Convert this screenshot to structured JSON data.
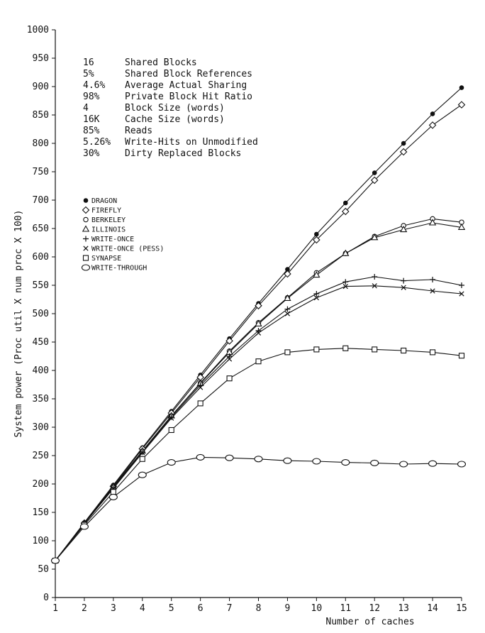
{
  "chart_data": {
    "type": "line",
    "title": "",
    "xlabel": "Number of caches",
    "ylabel": "System power (Proc util X num proc X 100)",
    "xlim": [
      1,
      15
    ],
    "ylim": [
      0,
      1000
    ],
    "xticks": [
      "1",
      "2",
      "3",
      "4",
      "5",
      "6",
      "7",
      "8",
      "9",
      "10",
      "11",
      "12",
      "13",
      "14",
      "15"
    ],
    "yticks": [
      "0",
      "50",
      "100",
      "150",
      "200",
      "250",
      "300",
      "350",
      "400",
      "450",
      "500",
      "550",
      "600",
      "650",
      "700",
      "750",
      "800",
      "850",
      "900",
      "950",
      "1000"
    ],
    "grid": false,
    "legend_position": "left",
    "parameters": [
      {
        "value": "16",
        "label": "Shared Blocks"
      },
      {
        "value": "5%",
        "label": "Shared Block References"
      },
      {
        "value": "4.6%",
        "label": "Average Actual Sharing"
      },
      {
        "value": "98%",
        "label": "Private Block Hit Ratio"
      },
      {
        "value": "4",
        "label": "Block Size (words)"
      },
      {
        "value": "16K",
        "label": "Cache Size (words)"
      },
      {
        "value": "85%",
        "label": "Reads"
      },
      {
        "value": "5.26%",
        "label": "Write-Hits on Unmodified"
      },
      {
        "value": "30%",
        "label": "Dirty Replaced Blocks"
      }
    ],
    "x": [
      1,
      2,
      3,
      4,
      5,
      6,
      7,
      8,
      9,
      10,
      11,
      12,
      13,
      14,
      15
    ],
    "series": [
      {
        "name": "DRAGON",
        "marker": "filled-dot",
        "values": [
          65,
          132,
          198,
          264,
          328,
          392,
          456,
          518,
          578,
          640,
          695,
          748,
          800,
          852,
          898
        ]
      },
      {
        "name": "FIREFLY",
        "marker": "diamond",
        "values": [
          65,
          131,
          196,
          262,
          325,
          388,
          452,
          514,
          570,
          630,
          680,
          735,
          785,
          832,
          868
        ]
      },
      {
        "name": "BERKELEY",
        "marker": "small-circle",
        "values": [
          65,
          131,
          195,
          258,
          320,
          378,
          434,
          484,
          528,
          572,
          606,
          636,
          655,
          667,
          661
        ]
      },
      {
        "name": "ILLINOIS",
        "marker": "triangle",
        "values": [
          65,
          131,
          195,
          258,
          320,
          377,
          432,
          482,
          527,
          568,
          606,
          634,
          648,
          660,
          652
        ]
      },
      {
        "name": "WRITE-ONCE",
        "marker": "plus",
        "values": [
          65,
          130,
          193,
          256,
          318,
          374,
          425,
          470,
          508,
          535,
          556,
          565,
          558,
          560,
          550
        ]
      },
      {
        "name": "WRITE-ONCE (PESS)",
        "marker": "cross",
        "values": [
          65,
          130,
          192,
          255,
          316,
          370,
          420,
          466,
          500,
          528,
          548,
          549,
          546,
          540,
          535
        ]
      },
      {
        "name": "SYNAPSE",
        "marker": "square",
        "values": [
          65,
          128,
          186,
          244,
          295,
          342,
          386,
          416,
          432,
          437,
          439,
          437,
          435,
          432,
          426
        ]
      },
      {
        "name": "WRITE-THROUGH",
        "marker": "circle",
        "values": [
          65,
          125,
          177,
          216,
          238,
          247,
          246,
          244,
          241,
          240,
          238,
          237,
          235,
          236,
          235
        ]
      }
    ]
  }
}
